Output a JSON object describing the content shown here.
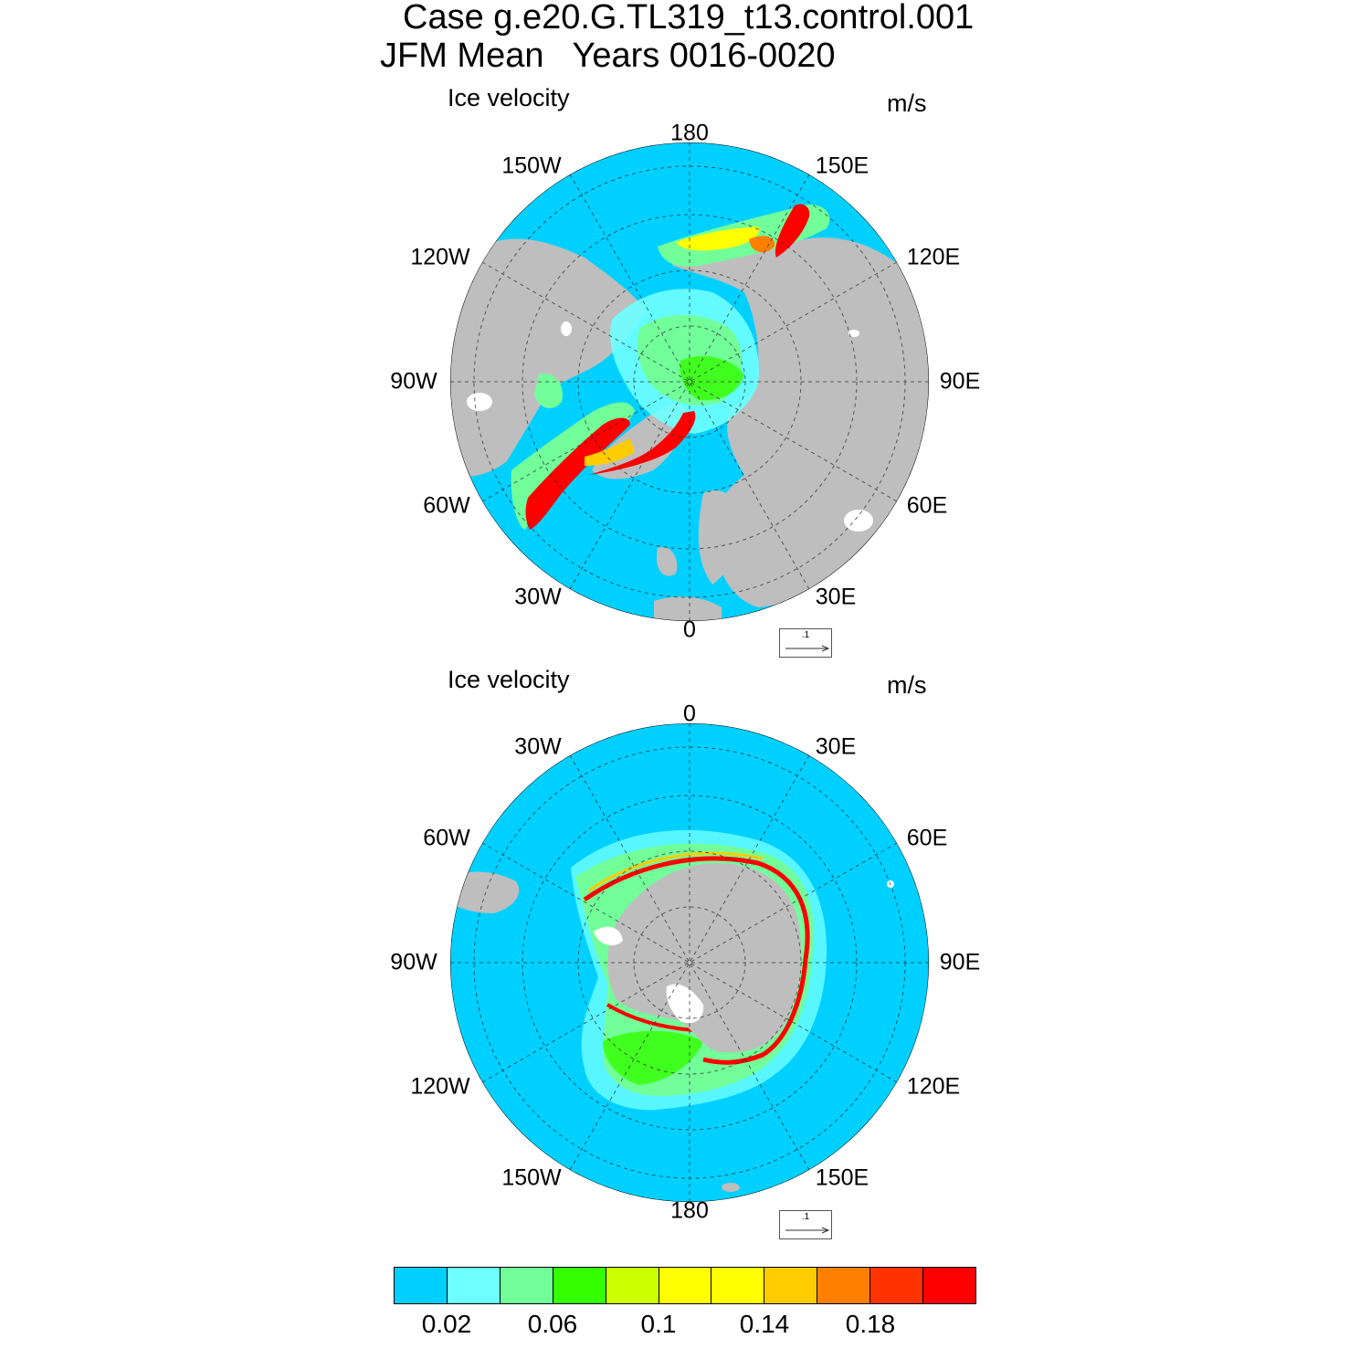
{
  "title": {
    "line1": "Case g.e20.G.TL319_t13.control.001",
    "line2": "JFM Mean   Years 0016-0020"
  },
  "panels": [
    {
      "id": "north",
      "label": "Ice velocity",
      "units": "m/s",
      "lon_labels": [
        "180",
        "150E",
        "120E",
        "90E",
        "60E",
        "30E",
        "0",
        "30W",
        "60W",
        "90W",
        "120W",
        "150W"
      ],
      "ref_vector": ".1"
    },
    {
      "id": "south",
      "label": "Ice velocity",
      "units": "m/s",
      "lon_labels": [
        "0",
        "30E",
        "60E",
        "90E",
        "120E",
        "150E",
        "180",
        "150W",
        "120W",
        "90W",
        "60W",
        "30W"
      ],
      "ref_vector": ".1"
    }
  ],
  "colorbar": {
    "colors": [
      "#00d0ff",
      "#6effff",
      "#72ff9a",
      "#33ff00",
      "#ccff00",
      "#ffff00",
      "#ffff00",
      "#ffcc00",
      "#ff8000",
      "#ff3300",
      "#ff0000"
    ],
    "tick_labels": [
      "0.02",
      "0.06",
      "0.1",
      "0.14",
      "0.18"
    ]
  },
  "colors": {
    "ocean": "#00d0ff",
    "land": "#bebebe"
  }
}
